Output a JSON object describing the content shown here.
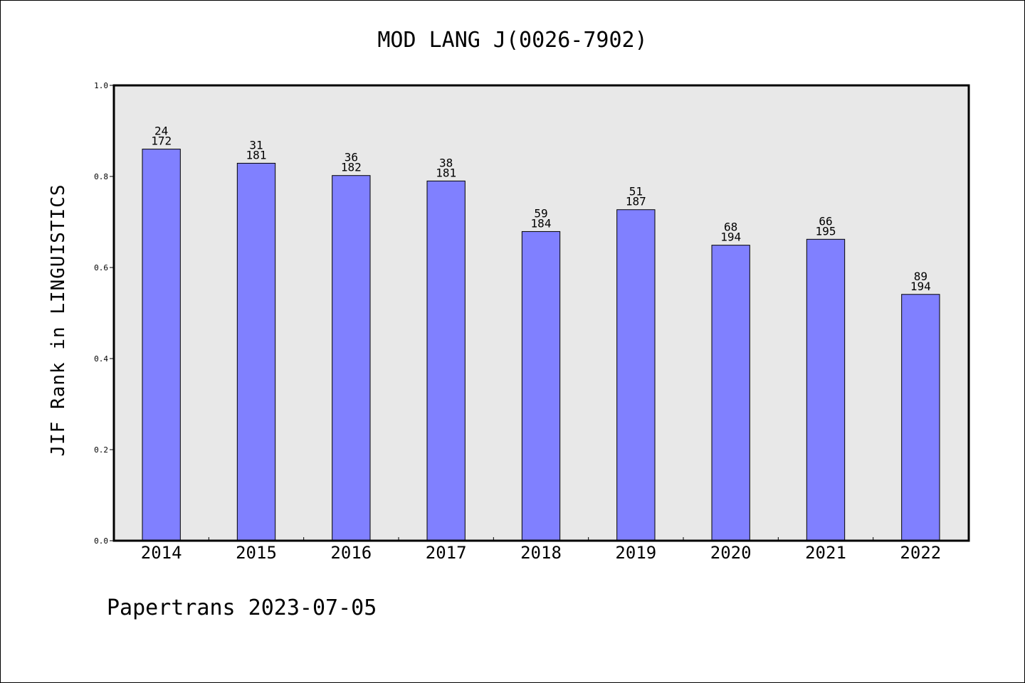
{
  "chart_data": {
    "type": "bar",
    "title": "MOD LANG J(0026-7902)",
    "xlabel": "",
    "ylabel": "JIF Rank in LINGUISTICS",
    "ylim": [
      0,
      1.0
    ],
    "yticks": [
      "0.0",
      "0.2",
      "0.4",
      "0.6",
      "0.8",
      "1.0"
    ],
    "categories": [
      "2014",
      "2015",
      "2016",
      "2017",
      "2018",
      "2019",
      "2020",
      "2021",
      "2022"
    ],
    "values": [
      0.86,
      0.829,
      0.802,
      0.79,
      0.679,
      0.727,
      0.649,
      0.662,
      0.541
    ],
    "bar_labels": [
      {
        "rank": "24",
        "total": "172"
      },
      {
        "rank": "31",
        "total": "181"
      },
      {
        "rank": "36",
        "total": "182"
      },
      {
        "rank": "38",
        "total": "181"
      },
      {
        "rank": "59",
        "total": "184"
      },
      {
        "rank": "51",
        "total": "187"
      },
      {
        "rank": "68",
        "total": "194"
      },
      {
        "rank": "66",
        "total": "195"
      },
      {
        "rank": "89",
        "total": "194"
      }
    ],
    "grid": false,
    "bar_color": "#8080ff",
    "plot_background": "#e8e8e8"
  },
  "footer": "Papertrans 2023-07-05"
}
